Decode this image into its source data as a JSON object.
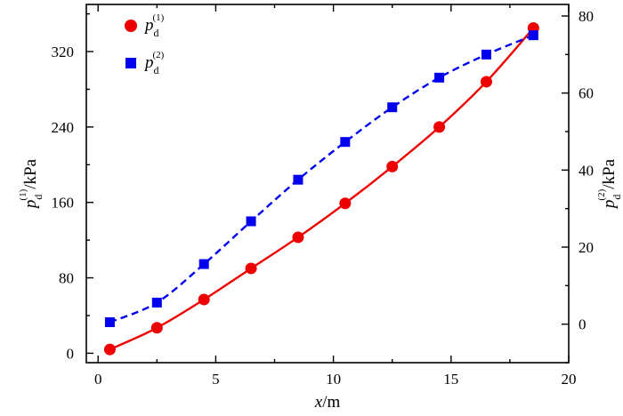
{
  "chart_data": {
    "type": "scatter",
    "x_axis": {
      "label_var": "x",
      "label_unit": "/m",
      "range": [
        -0.5,
        20
      ],
      "ticks": [
        0,
        5,
        10,
        15,
        20
      ],
      "tick_labels": [
        "0",
        "5",
        "10",
        "15",
        "20"
      ]
    },
    "y_left_axis": {
      "label": "p_d^(1)/kPa",
      "label_main": "p",
      "label_sub": "d",
      "label_sup": "(1)",
      "label_unit": "/kPa",
      "range": [
        -10,
        370
      ],
      "ticks": [
        0,
        80,
        160,
        240,
        320
      ],
      "tick_labels": [
        "0",
        "80",
        "160",
        "240",
        "320"
      ]
    },
    "y_right_axis": {
      "label": "p_d^(2)/kPa",
      "label_main": "p",
      "label_sub": "d",
      "label_sup": "(2)",
      "label_unit": "/kPa",
      "range": [
        -10,
        83
      ],
      "ticks": [
        0,
        20,
        40,
        60,
        80
      ],
      "tick_labels": [
        "0",
        "20",
        "40",
        "60",
        "80"
      ]
    },
    "series": [
      {
        "name": "p_d^(1)",
        "label_main": "p",
        "label_sub": "d",
        "label_sup": "(1)",
        "axis": "left",
        "marker": "circle",
        "color": "#ee0000",
        "line_style": "solid",
        "x": [
          0.5,
          2.5,
          4.5,
          6.5,
          8.5,
          10.5,
          12.5,
          14.5,
          16.5,
          18.5
        ],
        "y": [
          4,
          27,
          57,
          90,
          123,
          159,
          198,
          240,
          288,
          345
        ]
      },
      {
        "name": "p_d^(2)",
        "label_main": "p",
        "label_sub": "d",
        "label_sup": "(2)",
        "axis": "right",
        "marker": "square",
        "color": "#0000ee",
        "line_style": "dashed",
        "x": [
          0.5,
          2.5,
          4.5,
          6.5,
          8.5,
          10.5,
          12.5,
          14.5,
          16.5,
          18.5
        ],
        "y": [
          0.5,
          5.6,
          15.6,
          26.7,
          37.5,
          47.3,
          56.3,
          64,
          70,
          75
        ]
      }
    ],
    "legend": {
      "placement": "top-left"
    },
    "grid": false
  }
}
